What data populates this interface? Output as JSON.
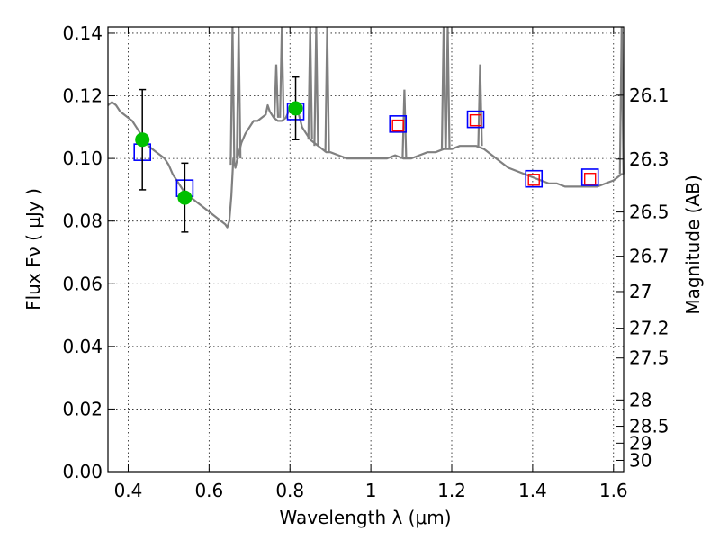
{
  "chart_data": {
    "type": "scatter",
    "title": "",
    "xlabel": "Wavelength  λ (μm)",
    "ylabel": "Flux  Fν  ( μJy )",
    "y2label": "Magnitude (AB)",
    "xlim": [
      0.35,
      1.625
    ],
    "ylim": [
      0.0,
      0.142
    ],
    "grid": true,
    "xticks": [
      0.4,
      0.6,
      0.8,
      1.0,
      1.2,
      1.4,
      1.6
    ],
    "xtick_labels": [
      "0.4",
      "0.6",
      "0.8",
      "1",
      "1.2",
      "1.4",
      "1.6"
    ],
    "yticks": [
      0.0,
      0.02,
      0.04,
      0.06,
      0.08,
      0.1,
      0.12,
      0.14
    ],
    "ytick_labels": [
      "0.00",
      "0.02",
      "0.04",
      "0.06",
      "0.08",
      "0.10",
      "0.12",
      "0.14"
    ],
    "y2ticks": [
      {
        "flux": 0.1202,
        "label": "26.1"
      },
      {
        "flux": 0.0998,
        "label": "26.3"
      },
      {
        "flux": 0.0829,
        "label": "26.5"
      },
      {
        "flux": 0.0688,
        "label": "26.7"
      },
      {
        "flux": 0.0575,
        "label": "27"
      },
      {
        "flux": 0.0458,
        "label": "27.2"
      },
      {
        "flux": 0.0363,
        "label": "27.5"
      },
      {
        "flux": 0.0229,
        "label": "28"
      },
      {
        "flux": 0.0145,
        "label": "28.5"
      },
      {
        "flux": 0.0091,
        "label": "29"
      },
      {
        "flux": 0.0036,
        "label": "30"
      }
    ],
    "series": [
      {
        "kind": "line",
        "color": "#808080",
        "x": [
          0.35,
          0.36,
          0.37,
          0.38,
          0.39,
          0.4,
          0.41,
          0.42,
          0.43,
          0.44,
          0.45,
          0.46,
          0.47,
          0.48,
          0.49,
          0.5,
          0.51,
          0.52,
          0.53,
          0.54,
          0.55,
          0.56,
          0.57,
          0.58,
          0.59,
          0.6,
          0.61,
          0.62,
          0.63,
          0.64,
          0.645,
          0.65,
          0.652,
          0.655,
          0.66,
          0.665,
          0.67,
          0.68,
          0.69,
          0.7,
          0.71,
          0.72,
          0.73,
          0.74,
          0.745,
          0.75,
          0.76,
          0.77,
          0.78,
          0.79,
          0.8,
          0.81,
          0.82,
          0.83,
          0.84,
          0.85,
          0.86,
          0.87,
          0.88,
          0.89,
          0.9,
          0.92,
          0.94,
          0.96,
          0.98,
          1.0,
          1.02,
          1.04,
          1.06,
          1.08,
          1.1,
          1.12,
          1.14,
          1.16,
          1.18,
          1.2,
          1.22,
          1.24,
          1.26,
          1.28,
          1.3,
          1.32,
          1.34,
          1.36,
          1.38,
          1.4,
          1.42,
          1.44,
          1.46,
          1.48,
          1.5,
          1.52,
          1.54,
          1.56,
          1.58,
          1.6,
          1.61,
          1.62,
          1.625
        ],
        "y": [
          0.117,
          0.118,
          0.117,
          0.115,
          0.114,
          0.113,
          0.112,
          0.11,
          0.108,
          0.106,
          0.104,
          0.103,
          0.102,
          0.101,
          0.1,
          0.098,
          0.095,
          0.093,
          0.091,
          0.089,
          0.088,
          0.087,
          0.086,
          0.085,
          0.084,
          0.083,
          0.082,
          0.081,
          0.08,
          0.079,
          0.078,
          0.08,
          0.083,
          0.088,
          0.1,
          0.097,
          0.1,
          0.105,
          0.108,
          0.11,
          0.112,
          0.112,
          0.113,
          0.114,
          0.117,
          0.115,
          0.113,
          0.112,
          0.112,
          0.113,
          0.116,
          0.117,
          0.115,
          0.11,
          0.108,
          0.106,
          0.105,
          0.104,
          0.103,
          0.102,
          0.102,
          0.101,
          0.1,
          0.1,
          0.1,
          0.1,
          0.1,
          0.1,
          0.101,
          0.1,
          0.1,
          0.101,
          0.102,
          0.102,
          0.103,
          0.103,
          0.104,
          0.104,
          0.104,
          0.103,
          0.101,
          0.099,
          0.097,
          0.096,
          0.095,
          0.094,
          0.093,
          0.092,
          0.092,
          0.091,
          0.091,
          0.091,
          0.091,
          0.091,
          0.092,
          0.093,
          0.094,
          0.095,
          0.095
        ]
      },
      {
        "kind": "spikes",
        "color": "#808080",
        "x": [
          0.658,
          0.673,
          0.766,
          0.78,
          0.85,
          0.865,
          0.892,
          1.083,
          1.18,
          1.19,
          1.27,
          1.62
        ],
        "y_top": [
          0.142,
          0.142,
          0.13,
          0.142,
          0.142,
          0.142,
          0.142,
          0.122,
          0.142,
          0.142,
          0.13,
          0.142
        ],
        "y_base": [
          0.098,
          0.1,
          0.113,
          0.113,
          0.106,
          0.104,
          0.102,
          0.1,
          0.103,
          0.103,
          0.104,
          0.095
        ]
      },
      {
        "kind": "points",
        "marker": "circle",
        "color": "#00c000",
        "x": [
          0.435,
          0.54,
          0.814
        ],
        "y": [
          0.106,
          0.0875,
          0.116
        ],
        "yerr": [
          0.016,
          0.011,
          0.01
        ]
      },
      {
        "kind": "points",
        "marker": "open-square-large",
        "color": "#0000ff",
        "x": [
          0.435,
          0.54,
          0.814,
          1.067,
          1.259,
          1.403,
          1.542
        ],
        "y": [
          0.102,
          0.0905,
          0.115,
          0.111,
          0.1125,
          0.0935,
          0.094
        ]
      },
      {
        "kind": "points",
        "marker": "open-square-small",
        "color": "#ff0000",
        "x": [
          1.067,
          1.259,
          1.403,
          1.542
        ],
        "y": [
          0.1105,
          0.1122,
          0.0932,
          0.0935
        ]
      }
    ]
  }
}
